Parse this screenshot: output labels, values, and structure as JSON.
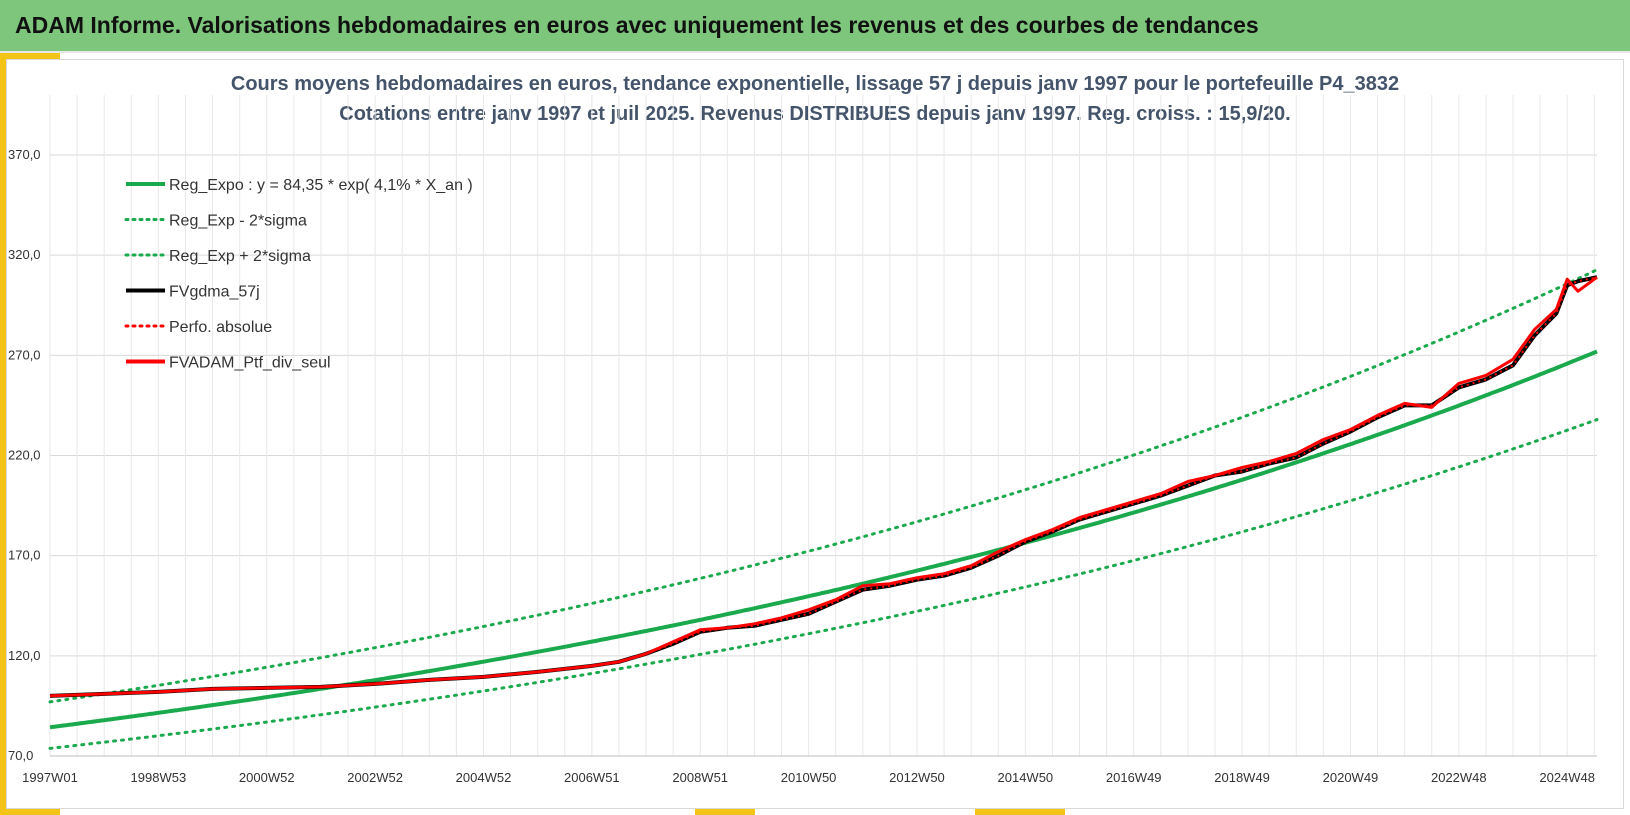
{
  "header": {
    "title": "ADAM Informe. Valorisations hebdomadaires en euros avec uniquement les revenus et des courbes de tendances"
  },
  "colors": {
    "header_bg": "#7dc67c",
    "accent": "#f3c316",
    "green": "#1aa94c",
    "black": "#000000",
    "red": "#ff0000"
  },
  "chart_data": {
    "type": "line",
    "title_line1": "Cours moyens hebdomadaires  en euros, tendance exponentielle, lissage 57 j depuis janv 1997 pour le portefeuille P4_3832",
    "title_line2": "Cotations  entre janv 1997 et juil 2025. Revenus DISTRIBUES depuis janv 1997. Reg. croiss. : 15,9/20.",
    "y_ticks": [
      "370,0",
      "320,0",
      "270,0",
      "220,0",
      "170,0",
      "120,0",
      "70,0"
    ],
    "ylim": [
      70,
      370
    ],
    "x_tick_labels": [
      "1997W01",
      "1998W53",
      "2000W52",
      "2002W52",
      "2004W52",
      "2006W51",
      "2008W51",
      "2010W50",
      "2012W50",
      "2014W50",
      "2016W49",
      "2018W49",
      "2020W49",
      "2022W48",
      "2024W48"
    ],
    "x_ticks_years": [
      1997.0,
      1999.0,
      2001.0,
      2003.0,
      2005.0,
      2007.0,
      2009.0,
      2011.0,
      2013.0,
      2015.0,
      2017.0,
      2019.0,
      2021.0,
      2023.0,
      2025.0
    ],
    "xlim": [
      1997.0,
      2025.55
    ],
    "grid": true,
    "legend_position": "top-left",
    "legend": [
      {
        "label": "Reg_Expo : y = 84,35 * exp( 4,1% *  X_an )",
        "color": "#1aa94c",
        "style": "solid"
      },
      {
        "label": "Reg_Exp - 2*sigma",
        "color": "#1aa94c",
        "style": "dotted"
      },
      {
        "label": "Reg_Exp + 2*sigma",
        "color": "#1aa94c",
        "style": "dotted"
      },
      {
        "label": "FVgdma_57j",
        "color": "#000000",
        "style": "solid"
      },
      {
        "label": "Perfo. absolue",
        "color": "#ff0000",
        "style": "dotted"
      },
      {
        "label": "FVADAM_Ptf_div_seul",
        "color": "#ff0000",
        "style": "solid"
      }
    ],
    "series": [
      {
        "name": "Reg_Expo : y = 84,35 * exp( 4,1% *  X_an )",
        "formula": {
          "a": 84.35,
          "rate": 0.041,
          "factor": 1.0
        }
      },
      {
        "name": "Reg_Exp - 2*sigma",
        "formula": {
          "a": 84.35,
          "rate": 0.041,
          "factor": 0.875
        }
      },
      {
        "name": "Reg_Exp + 2*sigma",
        "formula": {
          "a": 84.35,
          "rate": 0.041,
          "factor": 1.15
        }
      },
      {
        "name": "FVgdma_57j",
        "x": [
          1997.0,
          1998.0,
          1999.0,
          2000.0,
          2001.0,
          2002.0,
          2003.0,
          2004.0,
          2005.0,
          2006.0,
          2007.0,
          2007.5,
          2008.0,
          2008.5,
          2009.0,
          2009.5,
          2010.0,
          2010.5,
          2011.0,
          2011.5,
          2012.0,
          2012.5,
          2013.0,
          2013.5,
          2014.0,
          2014.5,
          2015.0,
          2015.5,
          2016.0,
          2016.5,
          2017.0,
          2017.5,
          2018.0,
          2018.5,
          2019.0,
          2019.5,
          2020.0,
          2020.5,
          2021.0,
          2021.5,
          2022.0,
          2022.5,
          2023.0,
          2023.5,
          2024.0,
          2024.4,
          2024.8,
          2025.0,
          2025.2,
          2025.55
        ],
        "y": [
          100,
          101,
          102,
          103.5,
          104,
          104.5,
          106,
          108,
          109.5,
          112,
          115,
          117,
          121,
          126,
          132,
          134,
          135,
          138,
          141,
          147,
          153,
          155,
          158,
          160,
          164,
          170,
          177,
          182,
          188,
          192,
          196,
          200,
          205,
          210,
          212,
          216,
          219,
          226,
          232,
          239,
          245,
          245,
          254,
          258,
          265,
          280,
          291,
          305,
          307,
          309
        ]
      },
      {
        "name": "Perfo. absolue",
        "x": [
          1997.0,
          1998.0,
          1999.0,
          2000.0,
          2001.0,
          2002.0,
          2003.0,
          2004.0,
          2005.0,
          2006.0,
          2007.0,
          2007.5,
          2008.0,
          2008.5,
          2009.0,
          2009.5,
          2010.0,
          2010.5,
          2011.0,
          2011.5,
          2012.0,
          2012.5,
          2013.0,
          2013.5,
          2014.0,
          2014.5,
          2015.0,
          2015.5,
          2016.0,
          2016.5,
          2017.0,
          2017.5,
          2018.0,
          2018.5,
          2019.0,
          2019.5,
          2020.0,
          2020.5,
          2021.0,
          2021.5,
          2022.0,
          2022.5,
          2023.0,
          2023.5,
          2024.0,
          2024.4,
          2024.8,
          2025.0,
          2025.2,
          2025.55
        ],
        "y": [
          100,
          101,
          102,
          103.5,
          104,
          104.5,
          106,
          108,
          109.5,
          112,
          115,
          117,
          121,
          126,
          132,
          134,
          135,
          138,
          141,
          147,
          153,
          155,
          158,
          160,
          164,
          170,
          177,
          182,
          188,
          192,
          196,
          200,
          205,
          210,
          212,
          216,
          219,
          226,
          232,
          239,
          245,
          245,
          254,
          258,
          265,
          280,
          291,
          305,
          307,
          309
        ]
      },
      {
        "name": "FVADAM_Ptf_div_seul",
        "x": [
          1997.0,
          1998.0,
          1999.0,
          2000.0,
          2001.0,
          2002.0,
          2003.0,
          2004.0,
          2005.0,
          2006.0,
          2007.0,
          2007.5,
          2008.0,
          2008.5,
          2009.0,
          2009.5,
          2010.0,
          2010.5,
          2011.0,
          2011.5,
          2012.0,
          2012.5,
          2013.0,
          2013.5,
          2014.0,
          2014.5,
          2015.0,
          2015.5,
          2016.0,
          2016.5,
          2017.0,
          2017.5,
          2018.0,
          2018.5,
          2019.0,
          2019.5,
          2020.0,
          2020.5,
          2021.0,
          2021.5,
          2022.0,
          2022.5,
          2023.0,
          2023.5,
          2024.0,
          2024.4,
          2024.8,
          2025.0,
          2025.2,
          2025.55
        ],
        "y": [
          100,
          101,
          102,
          103.5,
          104,
          104.5,
          106,
          108,
          109.5,
          112,
          115,
          117,
          121,
          127,
          133,
          134,
          136,
          139,
          143,
          148,
          155,
          156,
          159,
          161,
          165,
          172,
          178,
          183,
          189,
          193,
          197,
          201,
          207,
          210,
          214,
          217,
          221,
          228,
          233,
          240,
          246,
          244,
          256,
          260,
          268,
          283,
          293,
          308,
          302,
          309
        ]
      }
    ]
  }
}
